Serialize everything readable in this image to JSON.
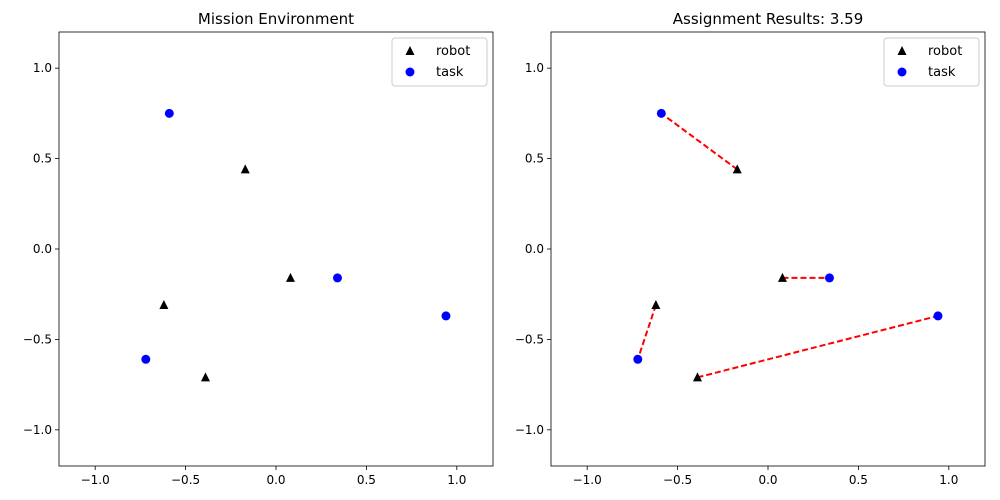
{
  "chart_data": [
    {
      "type": "scatter",
      "title": "Mission Environment",
      "xlabel": "",
      "ylabel": "",
      "xlim": [
        -1.2,
        1.2
      ],
      "ylim": [
        -1.2,
        1.2
      ],
      "xticks": [
        -1.0,
        -0.5,
        0.0,
        0.5,
        1.0
      ],
      "yticks": [
        -1.0,
        -0.5,
        0.0,
        0.5,
        1.0
      ],
      "xtick_labels": [
        "−1.0",
        "−0.5",
        "0.0",
        "0.5",
        "1.0"
      ],
      "ytick_labels": [
        "−1.0",
        "−0.5",
        "0.0",
        "0.5",
        "1.0"
      ],
      "grid": false,
      "legend_position": "top-right",
      "series": [
        {
          "name": "robot",
          "marker": "triangle",
          "color": "#000000",
          "points": [
            [
              -0.17,
              0.44
            ],
            [
              0.08,
              -0.16
            ],
            [
              -0.62,
              -0.31
            ],
            [
              -0.39,
              -0.71
            ]
          ]
        },
        {
          "name": "task",
          "marker": "circle",
          "color": "#0000ff",
          "points": [
            [
              -0.59,
              0.75
            ],
            [
              0.34,
              -0.16
            ],
            [
              0.94,
              -0.37
            ],
            [
              -0.72,
              -0.61
            ]
          ]
        }
      ],
      "assignments": []
    },
    {
      "type": "scatter",
      "title": "Assignment Results: 3.59",
      "xlabel": "",
      "ylabel": "",
      "xlim": [
        -1.2,
        1.2
      ],
      "ylim": [
        -1.2,
        1.2
      ],
      "xticks": [
        -1.0,
        -0.5,
        0.0,
        0.5,
        1.0
      ],
      "yticks": [
        -1.0,
        -0.5,
        0.0,
        0.5,
        1.0
      ],
      "xtick_labels": [
        "−1.0",
        "−0.5",
        "0.0",
        "0.5",
        "1.0"
      ],
      "ytick_labels": [
        "−1.0",
        "−0.5",
        "0.0",
        "0.5",
        "1.0"
      ],
      "grid": false,
      "legend_position": "top-right",
      "series": [
        {
          "name": "robot",
          "marker": "triangle",
          "color": "#000000",
          "points": [
            [
              -0.17,
              0.44
            ],
            [
              0.08,
              -0.16
            ],
            [
              -0.62,
              -0.31
            ],
            [
              -0.39,
              -0.71
            ]
          ]
        },
        {
          "name": "task",
          "marker": "circle",
          "color": "#0000ff",
          "points": [
            [
              -0.59,
              0.75
            ],
            [
              0.34,
              -0.16
            ],
            [
              0.94,
              -0.37
            ],
            [
              -0.72,
              -0.61
            ]
          ]
        }
      ],
      "assignments": [
        {
          "robot": [
            -0.17,
            0.44
          ],
          "task": [
            -0.59,
            0.75
          ]
        },
        {
          "robot": [
            0.08,
            -0.16
          ],
          "task": [
            0.34,
            -0.16
          ]
        },
        {
          "robot": [
            -0.62,
            -0.31
          ],
          "task": [
            -0.72,
            -0.61
          ]
        },
        {
          "robot": [
            -0.39,
            -0.71
          ],
          "task": [
            0.94,
            -0.37
          ]
        }
      ],
      "assignment_line_color": "#ff0000"
    }
  ]
}
